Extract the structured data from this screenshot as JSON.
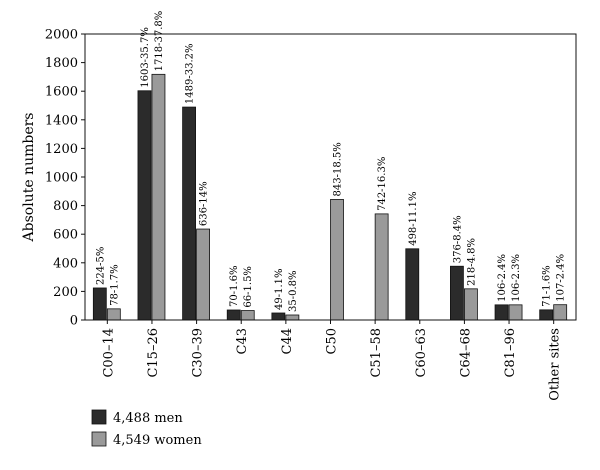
{
  "chart_data": {
    "type": "bar",
    "title": "",
    "xlabel": "",
    "ylabel": "Absolute numbers",
    "ylim": [
      0,
      2000
    ],
    "yticks": [
      0,
      200,
      400,
      600,
      800,
      1000,
      1200,
      1400,
      1600,
      1800,
      2000
    ],
    "grid": false,
    "legend_position": "bottom-left",
    "categories": [
      "C00–14",
      "C15–26",
      "C30–39",
      "C43",
      "C44",
      "C50",
      "C51–58",
      "C60–63",
      "C64–68",
      "C81–96",
      "Other sites"
    ],
    "series": [
      {
        "name": "4,488 men",
        "color": "#2b2b2b",
        "values": [
          224,
          1603,
          1489,
          70,
          49,
          null,
          null,
          498,
          376,
          106,
          71
        ],
        "labels": [
          "224-5%",
          "1603-35.7%",
          "1489-33.2%",
          "70-1.6%",
          "49-1.1%",
          "",
          "",
          "498-11.1%",
          "376-8.4%",
          "106-2.4%",
          "71-1.6%"
        ]
      },
      {
        "name": "4,549 women",
        "color": "#9a9a9a",
        "values": [
          78,
          1718,
          636,
          66,
          35,
          843,
          742,
          null,
          218,
          106,
          107
        ],
        "labels": [
          "78-1.7%",
          "1718-37.8%",
          "636-14%",
          "66-1.5%",
          "35-0.8%",
          "843-18.5%",
          "742-16.3%",
          "",
          "218-4.8%",
          "106-2.3%",
          "107-2.4%"
        ]
      }
    ]
  }
}
